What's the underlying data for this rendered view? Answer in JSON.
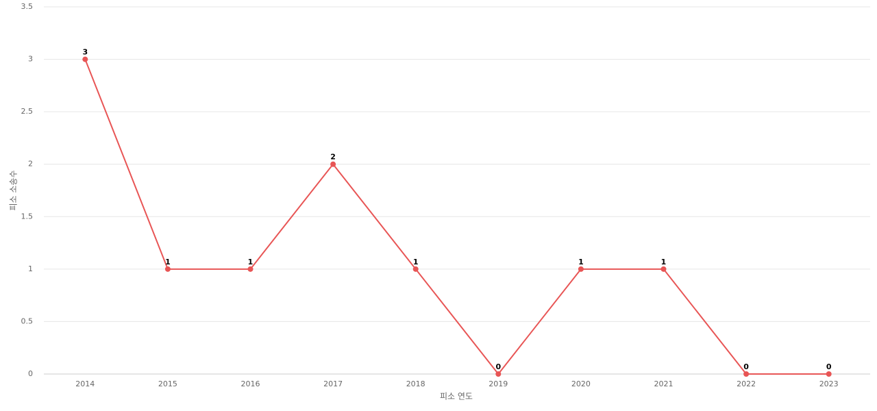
{
  "chart_data": {
    "type": "line",
    "x_label": "피소 연도",
    "y_label": "피소 소송수",
    "categories": [
      "2014",
      "2015",
      "2016",
      "2017",
      "2018",
      "2019",
      "2020",
      "2021",
      "2022",
      "2023"
    ],
    "series": [
      {
        "color": "#e85555",
        "values": [
          3,
          1,
          1,
          2,
          1,
          0,
          1,
          1,
          0,
          0
        ]
      }
    ],
    "ylim": [
      0,
      3.5
    ],
    "yticks": [
      0,
      0.5,
      1,
      1.5,
      2,
      2.5,
      3,
      3.5
    ],
    "grid": true
  }
}
